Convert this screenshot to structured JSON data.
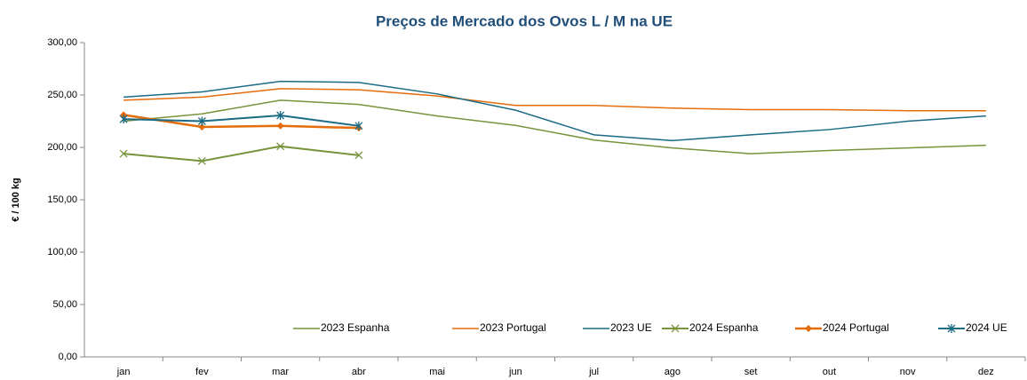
{
  "chart_data": {
    "type": "line",
    "title": "Preços de Mercado dos Ovos L / M na UE",
    "y_label": "€ / 100 kg",
    "categories": [
      "jan",
      "fev",
      "mar",
      "abr",
      "mai",
      "jun",
      "jul",
      "ago",
      "set",
      "out",
      "nov",
      "dez"
    ],
    "ylim": [
      0,
      300
    ],
    "yticks": [
      {
        "value": 0,
        "label": "0,00"
      },
      {
        "value": 50,
        "label": "50,00"
      },
      {
        "value": 100,
        "label": "100,00"
      },
      {
        "value": 150,
        "label": "150,00"
      },
      {
        "value": 200,
        "label": "200,00"
      },
      {
        "value": 250,
        "label": "250,00"
      },
      {
        "value": 300,
        "label": "300,00"
      }
    ],
    "grid": false,
    "legend": "bottom",
    "series": [
      {
        "name": "2023 Espanha",
        "color": "#77933c",
        "width": 1.5,
        "marker": "none",
        "values": [
          225,
          232,
          245,
          241,
          230,
          221,
          207,
          199.5,
          194,
          197,
          199.5,
          202
        ]
      },
      {
        "name": "2023 Portugal",
        "color": "#e46c0a",
        "width": 1.5,
        "marker": "none",
        "values": [
          245,
          248,
          256,
          255,
          249,
          240,
          240,
          237.5,
          236,
          236,
          235,
          235
        ]
      },
      {
        "name": "2023 UE",
        "color": "#1b6b84",
        "width": 1.5,
        "marker": "none",
        "values": [
          248,
          253,
          263,
          262,
          251,
          235.5,
          212,
          206.5,
          212,
          217,
          225,
          230
        ]
      },
      {
        "name": "2024 Espanha",
        "color": "#77933c",
        "width": 2,
        "marker": "x",
        "values": [
          194,
          187,
          201,
          192.5,
          null,
          null,
          null,
          null,
          null,
          null,
          null,
          null
        ]
      },
      {
        "name": "2024 Portugal",
        "color": "#e46c0a",
        "width": 2.5,
        "marker": "diamond",
        "values": [
          231,
          219.5,
          220.5,
          218.5,
          null,
          null,
          null,
          null,
          null,
          null,
          null,
          null
        ]
      },
      {
        "name": "2024 UE",
        "color": "#1b6b84",
        "width": 2,
        "marker": "asterisk",
        "values": [
          227,
          225,
          230.5,
          220.5,
          null,
          null,
          null,
          null,
          null,
          null,
          null,
          null
        ]
      }
    ]
  }
}
